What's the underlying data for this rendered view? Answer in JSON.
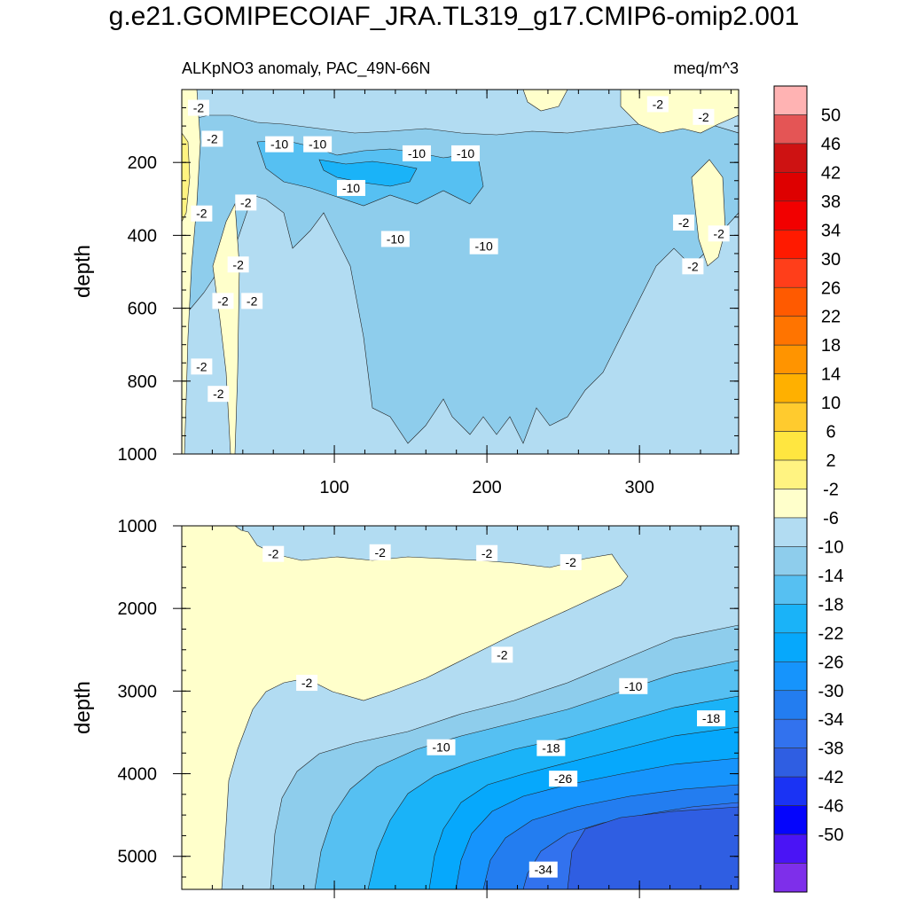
{
  "title": "g.e21.GOMIPECOIAF_JRA.TL319_g17.CMIP6-omip2.001",
  "chart_data": [
    {
      "type": "contour",
      "name": "upper-panel",
      "subtitle_left": "ALKpNO3 anomaly, PAC_49N-66N",
      "subtitle_right": "meq/m^3",
      "ylabel": "depth",
      "xlabel": "",
      "xlim": [
        0,
        365
      ],
      "ylim": [
        1000,
        0
      ],
      "x_ticks": [
        100,
        200,
        300
      ],
      "x_tick_labels": [
        "100",
        "200",
        "300"
      ],
      "y_ticks": [
        200,
        400,
        600,
        800,
        1000
      ],
      "y_tick_labels": [
        "200",
        "400",
        "600",
        "800",
        "1000"
      ],
      "contour_labels": [
        {
          "text": "-2",
          "x": 11,
          "y": 50
        },
        {
          "text": "-2",
          "x": 20,
          "y": 135
        },
        {
          "text": "-2",
          "x": 13,
          "y": 340
        },
        {
          "text": "-2",
          "x": 42,
          "y": 310
        },
        {
          "text": "-2",
          "x": 37,
          "y": 480
        },
        {
          "text": "-2",
          "x": 27,
          "y": 580
        },
        {
          "text": "-2",
          "x": 46,
          "y": 580
        },
        {
          "text": "-2",
          "x": 13,
          "y": 760
        },
        {
          "text": "-2",
          "x": 24,
          "y": 835
        },
        {
          "text": "-10",
          "x": 64,
          "y": 150
        },
        {
          "text": "-10",
          "x": 89,
          "y": 150
        },
        {
          "text": "-10",
          "x": 111,
          "y": 270
        },
        {
          "text": "-10",
          "x": 154,
          "y": 175
        },
        {
          "text": "-10",
          "x": 186,
          "y": 175
        },
        {
          "text": "-10",
          "x": 140,
          "y": 410
        },
        {
          "text": "-10",
          "x": 198,
          "y": 430
        },
        {
          "text": "-2",
          "x": 312,
          "y": 40
        },
        {
          "text": "-2",
          "x": 342,
          "y": 75
        },
        {
          "text": "-2",
          "x": 329,
          "y": 365
        },
        {
          "text": "-2",
          "x": 335,
          "y": 485
        },
        {
          "text": "-2",
          "x": 352,
          "y": 395
        }
      ]
    },
    {
      "type": "contour",
      "name": "lower-panel",
      "ylabel": "depth",
      "xlabel": "",
      "xlim": [
        0,
        365
      ],
      "ylim": [
        5400,
        1000
      ],
      "x_ticks": [
        100,
        200,
        300
      ],
      "y_ticks": [
        1000,
        2000,
        3000,
        4000,
        5000
      ],
      "y_tick_labels": [
        "1000",
        "2000",
        "3000",
        "4000",
        "5000"
      ],
      "contour_labels": [
        {
          "text": "-2",
          "x": 60,
          "y": 1340
        },
        {
          "text": "-2",
          "x": 130,
          "y": 1320
        },
        {
          "text": "-2",
          "x": 200,
          "y": 1330
        },
        {
          "text": "-2",
          "x": 255,
          "y": 1440
        },
        {
          "text": "-2",
          "x": 210,
          "y": 2560
        },
        {
          "text": "-2",
          "x": 82,
          "y": 2900
        },
        {
          "text": "-10",
          "x": 170,
          "y": 3680
        },
        {
          "text": "-10",
          "x": 296,
          "y": 2940
        },
        {
          "text": "-18",
          "x": 242,
          "y": 3690
        },
        {
          "text": "-18",
          "x": 347,
          "y": 3330
        },
        {
          "text": "-26",
          "x": 250,
          "y": 4060
        },
        {
          "text": "-34",
          "x": 237,
          "y": 5160
        }
      ]
    }
  ],
  "colorbar": {
    "labels": [
      "50",
      "46",
      "42",
      "38",
      "34",
      "30",
      "26",
      "22",
      "18",
      "14",
      "10",
      "6",
      "2",
      "-2",
      "-6",
      "-10",
      "-14",
      "-18",
      "-22",
      "-26",
      "-30",
      "-34",
      "-38",
      "-42",
      "-46",
      "-50"
    ],
    "colors": [
      "#FFB3B3",
      "#E45555",
      "#CE1212",
      "#DE0000",
      "#F20000",
      "#FF1A00",
      "#FF3E1A",
      "#FF5A00",
      "#FF7400",
      "#FF9400",
      "#FFB000",
      "#FFCB2E",
      "#FFE640",
      "#FFF381",
      "#FFFFCB",
      "#B2DCF2",
      "#8ECDEC",
      "#56C0F2",
      "#1AB3F8",
      "#06A8FC",
      "#1694FC",
      "#237DF0",
      "#3272EE",
      "#2F5EE2",
      "#1A33F4",
      "#0505FC",
      "#4A14F5",
      "#7E2FEA"
    ]
  },
  "palette": {
    "c_pos": "#FFFFCB",
    "c_m2": "#B2DCF2",
    "c_m6": "#8ECDEC",
    "c_m10": "#56C0F2",
    "c_m14": "#1AB3F8",
    "c_m18": "#06A8FC",
    "c_m22": "#1694FC",
    "c_m26": "#237DF0",
    "c_m30": "#3272EE",
    "c_m34": "#2F5EE2",
    "c_yel": "#FFF381"
  }
}
